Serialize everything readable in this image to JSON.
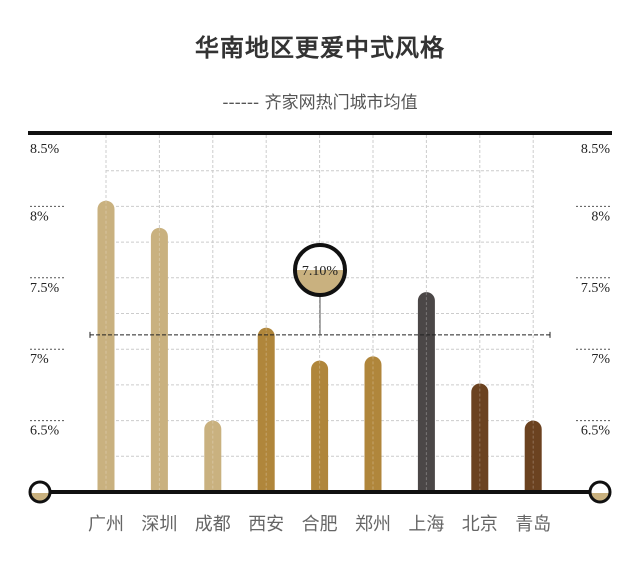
{
  "chart_data": {
    "type": "bar",
    "title": "华南地区更爱中式风格",
    "subtitle": "------ 齐家网热门城市均值",
    "categories": [
      "广州",
      "深圳",
      "成都",
      "西安",
      "合肥",
      "郑州",
      "上海",
      "北京",
      "青岛"
    ],
    "values": [
      8.04,
      7.85,
      6.5,
      7.15,
      6.92,
      6.95,
      7.4,
      6.76,
      6.5
    ],
    "colors": [
      "#c9b17f",
      "#c9b17f",
      "#c9b17f",
      "#b0863b",
      "#b0863b",
      "#b0863b",
      "#4b4747",
      "#6b4220",
      "#6b4220"
    ],
    "ylim": [
      6.0,
      8.5
    ],
    "yticks": [
      "6.5%",
      "7%",
      "7.5%",
      "8%",
      "8.5%"
    ],
    "ytick_values": [
      6.5,
      7,
      7.5,
      8,
      8.5
    ],
    "grid": true,
    "average": {
      "value": 7.1,
      "label": "7.10%"
    }
  }
}
